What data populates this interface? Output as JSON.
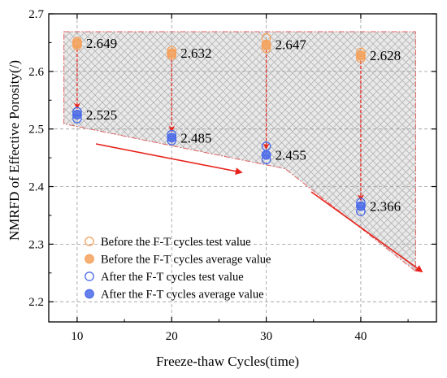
{
  "chart_data": {
    "type": "scatter",
    "xlabel": "Freeze-thaw Cycles(time)",
    "ylabel": "NMRFD of Effective Porosity(/)",
    "xlim": [
      7,
      48
    ],
    "ylim": [
      2.165,
      2.7
    ],
    "x_ticks": [
      10,
      20,
      30,
      40
    ],
    "y_ticks": [
      2.2,
      2.3,
      2.4,
      2.5,
      2.6,
      2.7
    ],
    "grid": true,
    "legend_position": "bottom-left",
    "colors": {
      "before": "#F5A25D",
      "after": "#4B6BE8",
      "arrow": "#E8231C",
      "region_border": "#E06060"
    },
    "series": [
      {
        "name": "Before the F-T cycles test value",
        "marker": "open-circle",
        "x": [
          10,
          10,
          10,
          20,
          20,
          20,
          30,
          30,
          30,
          40,
          40,
          40
        ],
        "y": [
          2.652,
          2.648,
          2.645,
          2.636,
          2.631,
          2.628,
          2.658,
          2.645,
          2.64,
          2.633,
          2.627,
          2.623
        ]
      },
      {
        "name": "Before the F-T cycles average value",
        "marker": "filled-circle",
        "x": [
          10,
          20,
          30,
          40
        ],
        "y": [
          2.649,
          2.632,
          2.647,
          2.628
        ]
      },
      {
        "name": "After the F-T cycles test value",
        "marker": "open-circle",
        "x": [
          10,
          10,
          10,
          20,
          20,
          20,
          30,
          30,
          30,
          40,
          40,
          40
        ],
        "y": [
          2.53,
          2.525,
          2.518,
          2.49,
          2.485,
          2.48,
          2.47,
          2.455,
          2.447,
          2.372,
          2.366,
          2.357
        ]
      },
      {
        "name": "After the F-T cycles average value",
        "marker": "filled-circle",
        "x": [
          10,
          20,
          30,
          40
        ],
        "y": [
          2.525,
          2.485,
          2.455,
          2.366
        ]
      }
    ],
    "data_labels": [
      {
        "x": 10,
        "y": 2.649,
        "text": "2.649"
      },
      {
        "x": 20,
        "y": 2.632,
        "text": "2.632"
      },
      {
        "x": 30,
        "y": 2.647,
        "text": "2.647"
      },
      {
        "x": 40,
        "y": 2.628,
        "text": "2.628"
      },
      {
        "x": 10,
        "y": 2.525,
        "text": "2.525"
      },
      {
        "x": 20,
        "y": 2.485,
        "text": "2.485"
      },
      {
        "x": 30,
        "y": 2.455,
        "text": "2.455"
      },
      {
        "x": 40,
        "y": 2.366,
        "text": "2.366"
      }
    ]
  }
}
